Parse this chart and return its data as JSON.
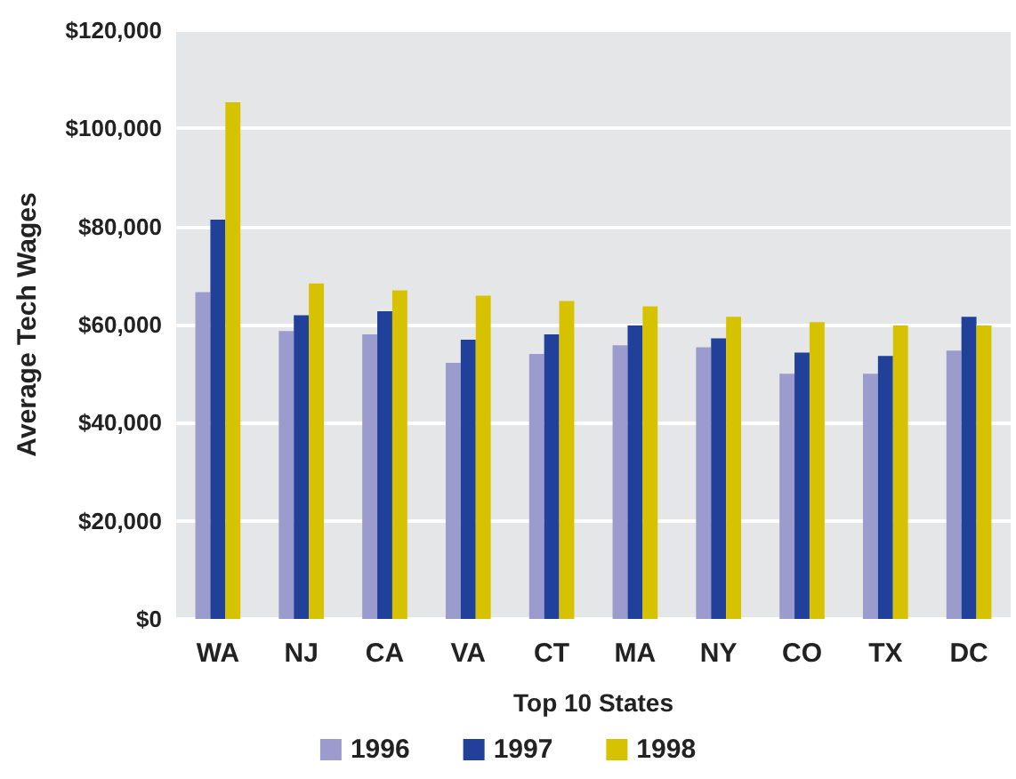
{
  "chart_data": {
    "type": "bar",
    "xlabel": "Top 10 States",
    "ylabel": "Average Tech Wages",
    "categories": [
      "WA",
      "NJ",
      "CA",
      "VA",
      "CT",
      "MA",
      "NY",
      "CO",
      "TX",
      "DC"
    ],
    "series": [
      {
        "name": "1996",
        "color": "#9b9ccd",
        "values": [
          66600,
          58700,
          58000,
          52200,
          54000,
          55800,
          55400,
          50000,
          50000,
          54700
        ]
      },
      {
        "name": "1997",
        "color": "#21409a",
        "values": [
          81400,
          61900,
          62700,
          56900,
          58000,
          59800,
          57200,
          54300,
          53600,
          61600
        ]
      },
      {
        "name": "1998",
        "color": "#d7c200",
        "values": [
          105300,
          68400,
          67000,
          65900,
          64800,
          63700,
          61600,
          60500,
          59800,
          59800
        ]
      }
    ],
    "ylim": [
      0,
      120000
    ],
    "yticks": [
      {
        "value": 0,
        "label": "$0"
      },
      {
        "value": 20000,
        "label": "$20,000"
      },
      {
        "value": 40000,
        "label": "$40,000"
      },
      {
        "value": 60000,
        "label": "$60,000"
      },
      {
        "value": 80000,
        "label": "$80,000"
      },
      {
        "value": 100000,
        "label": "$100,000"
      },
      {
        "value": 120000,
        "label": "$120,000"
      }
    ],
    "grid": "y",
    "legend": "bottom"
  }
}
